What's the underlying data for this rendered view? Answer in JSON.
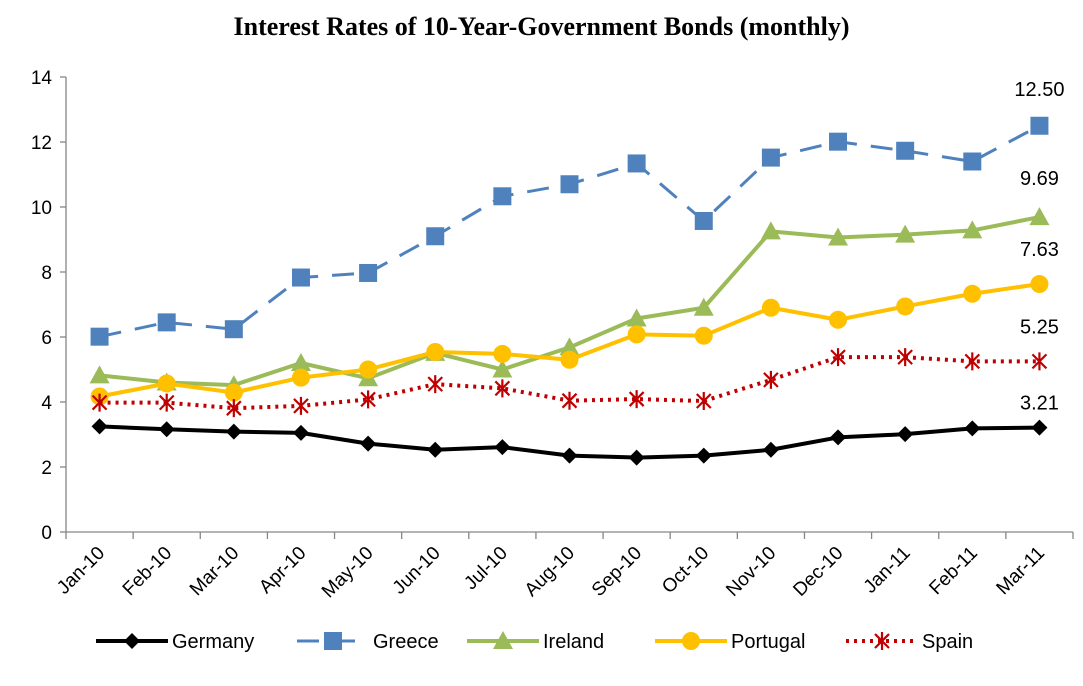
{
  "chart_data": {
    "type": "line",
    "title": "Interest Rates of 10-Year-Government Bonds (monthly)",
    "xlabel": "",
    "ylabel": "",
    "categories": [
      "Jan-10",
      "Feb-10",
      "Mar-10",
      "Apr-10",
      "May-10",
      "Jun-10",
      "Jul-10",
      "Aug-10",
      "Sep-10",
      "Oct-10",
      "Nov-10",
      "Dec-10",
      "Jan-11",
      "Feb-11",
      "Mar-11"
    ],
    "ylim": [
      0,
      14
    ],
    "yticks": [
      "0",
      "2",
      "4",
      "6",
      "8",
      "10",
      "12",
      "14"
    ],
    "grid": false,
    "legend": "bottom",
    "series": [
      {
        "name": "Germany",
        "color": "#000000",
        "dash": "solid",
        "marker": "diamond",
        "values": [
          3.25,
          3.16,
          3.09,
          3.05,
          2.72,
          2.53,
          2.61,
          2.35,
          2.29,
          2.35,
          2.53,
          2.91,
          3.01,
          3.19,
          3.21
        ],
        "end_label": "3.21"
      },
      {
        "name": "Greece",
        "color": "#4f81bd",
        "dash": "dashed",
        "marker": "square",
        "values": [
          6.01,
          6.45,
          6.24,
          7.83,
          7.97,
          9.1,
          10.33,
          10.7,
          11.34,
          9.57,
          11.52,
          12.01,
          11.73,
          11.4,
          12.5
        ],
        "end_label": "12.50"
      },
      {
        "name": "Ireland",
        "color": "#9bbb59",
        "dash": "solid",
        "marker": "triangle",
        "values": [
          4.82,
          4.6,
          4.52,
          5.2,
          4.73,
          5.51,
          5.0,
          5.68,
          6.57,
          6.9,
          9.25,
          9.06,
          9.15,
          9.28,
          9.69
        ],
        "end_label": "9.69"
      },
      {
        "name": "Portugal",
        "color": "#ffc000",
        "dash": "solid",
        "marker": "circle",
        "values": [
          4.17,
          4.57,
          4.29,
          4.75,
          5.0,
          5.54,
          5.48,
          5.3,
          6.08,
          6.04,
          6.9,
          6.53,
          6.94,
          7.33,
          7.63
        ],
        "end_label": "7.63"
      },
      {
        "name": "Spain",
        "color": "#c00000",
        "dash": "dotted",
        "marker": "star",
        "values": [
          3.98,
          3.98,
          3.81,
          3.88,
          4.08,
          4.55,
          4.42,
          4.04,
          4.09,
          4.03,
          4.68,
          5.38,
          5.38,
          5.25,
          5.25
        ],
        "end_label": "5.25"
      }
    ]
  }
}
